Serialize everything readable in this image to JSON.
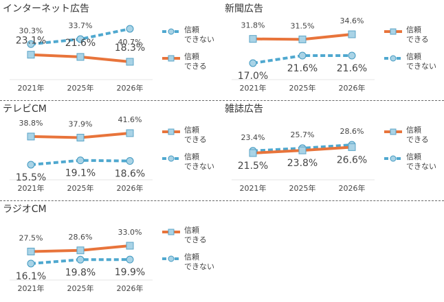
{
  "legend": {
    "trust_label_line1": "信頼",
    "trust_label_line2": "できる",
    "distrust_label_line1": "信頼",
    "distrust_label_line2": "できない"
  },
  "colors": {
    "trust": "#e8743b",
    "distrust": "#4fa8cf",
    "trust_marker_fill": "#a9d3e6",
    "distrust_marker_fill": "#a9d3e6",
    "title": "#333333",
    "label": "#444444"
  },
  "chart_data": [
    {
      "type": "line",
      "title": "インターネット広告",
      "categories": [
        "2021年",
        "2025年",
        "2026年"
      ],
      "series": [
        {
          "name": "信頼できる",
          "values": [
            23.1,
            21.6,
            18.3
          ]
        },
        {
          "name": "信頼できない",
          "values": [
            30.3,
            33.7,
            40.7
          ]
        }
      ],
      "legend": "right",
      "grid": false
    },
    {
      "type": "line",
      "title": "新聞広告",
      "categories": [
        "2021年",
        "2025年",
        "2026年"
      ],
      "series": [
        {
          "name": "信頼できる",
          "values": [
            31.8,
            31.5,
            34.6
          ]
        },
        {
          "name": "信頼できない",
          "values": [
            17.0,
            21.6,
            21.6
          ]
        }
      ],
      "legend": "right",
      "grid": false
    },
    {
      "type": "line",
      "title": "テレビCM",
      "categories": [
        "2021年",
        "2025年",
        "2026年"
      ],
      "series": [
        {
          "name": "信頼できる",
          "values": [
            38.8,
            37.9,
            41.6
          ]
        },
        {
          "name": "信頼できない",
          "values": [
            15.5,
            19.1,
            18.6
          ]
        }
      ],
      "legend": "right",
      "grid": false
    },
    {
      "type": "line",
      "title": "雑誌広告",
      "categories": [
        "2021年",
        "2025年",
        "2026年"
      ],
      "series": [
        {
          "name": "信頼できる",
          "values": [
            21.5,
            23.8,
            26.6
          ]
        },
        {
          "name": "信頼できない",
          "values": [
            23.4,
            25.7,
            28.6
          ]
        }
      ],
      "legend": "right",
      "grid": false
    },
    {
      "type": "line",
      "title": "ラジオCM",
      "categories": [
        "2021年",
        "2025年",
        "2026年"
      ],
      "series": [
        {
          "name": "信頼できる",
          "values": [
            27.5,
            28.6,
            33.0
          ]
        },
        {
          "name": "信頼できない",
          "values": [
            16.1,
            19.8,
            19.9
          ]
        }
      ],
      "legend": "right",
      "grid": false
    }
  ]
}
